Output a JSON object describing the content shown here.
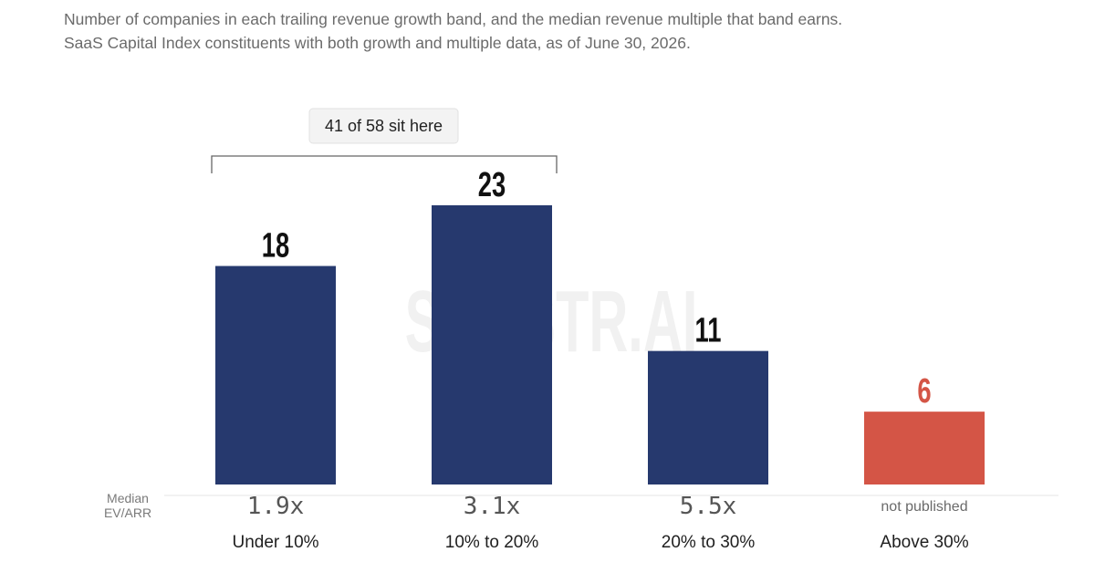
{
  "subtitle": {
    "line1": "Number of companies in each trailing revenue growth band, and the median revenue multiple that band earns.",
    "line2": "SaaS Capital Index constituents with both growth and multiple data, as of June 30, 2026."
  },
  "watermark": "SAASTR.AI",
  "chart_data": {
    "type": "bar",
    "title": "",
    "categories": [
      "Under 10%",
      "10% to 20%",
      "20% to 30%",
      "Above 30%"
    ],
    "values": [
      18,
      23,
      11,
      6
    ],
    "bar_colors": [
      "#26396e",
      "#26396e",
      "#26396e",
      "#d45546"
    ],
    "value_label_colors": [
      "#111111",
      "#111111",
      "#111111",
      "#d45546"
    ],
    "ylim": [
      0,
      23
    ],
    "grid": false,
    "secondary_row": {
      "label_line1": "Median",
      "label_line2": "EV/ARR",
      "values": [
        "1.9x",
        "3.1x",
        "5.5x",
        "not published"
      ]
    },
    "annotation": {
      "text": "41 of 58 sit here",
      "spans_categories": [
        "Under 10%",
        "10% to 20%"
      ]
    }
  }
}
